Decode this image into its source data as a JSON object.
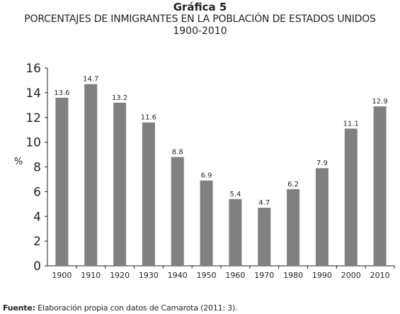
{
  "header": {
    "label": "Gráfica 5",
    "title": "PORCENTAJES DE INMIGRANTES EN LA POBLACIÓN DE ESTADOS UNIDOS",
    "period": "1900-2010"
  },
  "chart_data": {
    "type": "bar",
    "categories": [
      "1900",
      "1910",
      "1920",
      "1930",
      "1940",
      "1950",
      "1960",
      "1970",
      "1980",
      "1990",
      "2000",
      "2010"
    ],
    "values": [
      13.6,
      14.7,
      13.2,
      11.6,
      8.8,
      6.9,
      5.4,
      4.7,
      6.2,
      7.9,
      11.1,
      12.9
    ],
    "data_labels": [
      "13.6",
      "14.7",
      "13.2",
      "11.6",
      "8.8",
      "6.9",
      "5.4",
      "4.7",
      "6.2",
      "7.9",
      "11.1",
      "12.9"
    ],
    "ylabel": "%",
    "ylim": [
      0,
      16
    ],
    "yticks": [
      "0",
      "2",
      "4",
      "6",
      "8",
      "10",
      "12",
      "14",
      "16"
    ],
    "grid": false,
    "bar_color": "#808080"
  },
  "footer": {
    "source_label": "Fuente:",
    "source_text": "Elaboración propia con datos de Camarota (2011: 3)."
  }
}
